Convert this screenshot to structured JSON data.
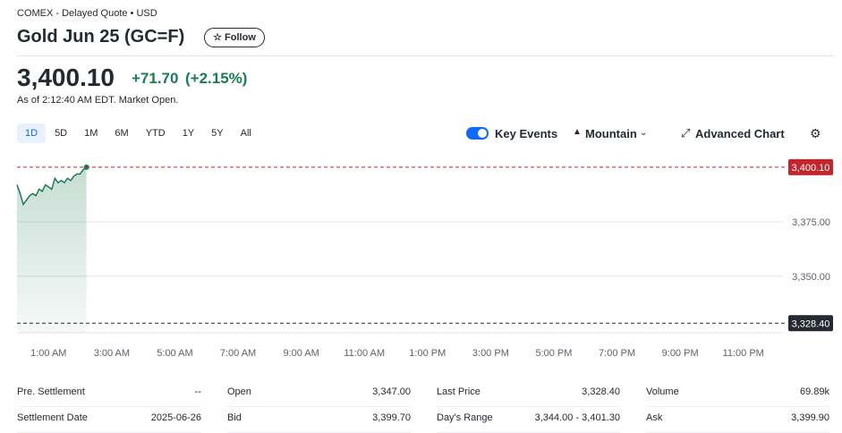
{
  "header": {
    "exchange": "COMEX - Delayed Quote • USD",
    "title": "Gold Jun 25 (GC=F)",
    "follow": "Follow",
    "price": "3,400.10",
    "change": "+71.70",
    "change_pct": "(+2.15%)",
    "timestamp": "As of 2:12:40 AM EDT. Market Open."
  },
  "toolbar": {
    "ranges": [
      "1D",
      "5D",
      "1M",
      "6M",
      "YTD",
      "1Y",
      "5Y",
      "All"
    ],
    "key_events": "Key Events",
    "chart_style": "Mountain",
    "advanced": "Advanced Chart"
  },
  "chart_data": {
    "type": "area",
    "color": "#1c7b54",
    "x": [
      0,
      0.1,
      0.2,
      0.3,
      0.4,
      0.5,
      0.6,
      0.7,
      0.8,
      0.9,
      1.0,
      1.1,
      1.2,
      1.3,
      1.4,
      1.5,
      1.6,
      1.7,
      1.8,
      1.9,
      2.0,
      2.1,
      2.2
    ],
    "values": [
      3392,
      3388,
      3383,
      3385,
      3387,
      3388,
      3387,
      3390,
      3389,
      3392,
      3391,
      3390,
      3395,
      3393,
      3394,
      3393,
      3395,
      3394,
      3396,
      3397,
      3397,
      3399,
      3400.1
    ],
    "xlim": [
      0,
      24
    ],
    "xticks": [
      {
        "value": 1,
        "label": "1:00 AM"
      },
      {
        "value": 3,
        "label": "3:00 AM"
      },
      {
        "value": 5,
        "label": "5:00 AM"
      },
      {
        "value": 7,
        "label": "7:00 AM"
      },
      {
        "value": 9,
        "label": "9:00 AM"
      },
      {
        "value": 11,
        "label": "11:00 AM"
      },
      {
        "value": 13,
        "label": "1:00 PM"
      },
      {
        "value": 15,
        "label": "3:00 PM"
      },
      {
        "value": 17,
        "label": "5:00 PM"
      },
      {
        "value": 19,
        "label": "7:00 PM"
      },
      {
        "value": 21,
        "label": "9:00 PM"
      },
      {
        "value": 23,
        "label": "11:00 PM"
      }
    ],
    "ylim": [
      3324,
      3405
    ],
    "yticks": [
      {
        "value": 3375,
        "label": "3,375.00"
      },
      {
        "value": 3350,
        "label": "3,350.00"
      }
    ],
    "reference_lines": [
      {
        "value": 3400.1,
        "label": "3,400.10",
        "color": "#c0272d"
      },
      {
        "value": 3328.4,
        "label": "3,328.40",
        "color": "#232a31"
      }
    ],
    "grid": true
  },
  "stats": {
    "rows": [
      [
        [
          "Pre. Settlement",
          "--"
        ],
        [
          "Open",
          "3,347.00"
        ],
        [
          "Last Price",
          "3,328.40"
        ],
        [
          "Volume",
          "69.89k"
        ]
      ],
      [
        [
          "Settlement Date",
          "2025-06-26"
        ],
        [
          "Bid",
          "3,399.70"
        ],
        [
          "Day's Range",
          "3,344.00 - 3,401.30"
        ],
        [
          "Ask",
          "3,399.90"
        ]
      ]
    ]
  }
}
